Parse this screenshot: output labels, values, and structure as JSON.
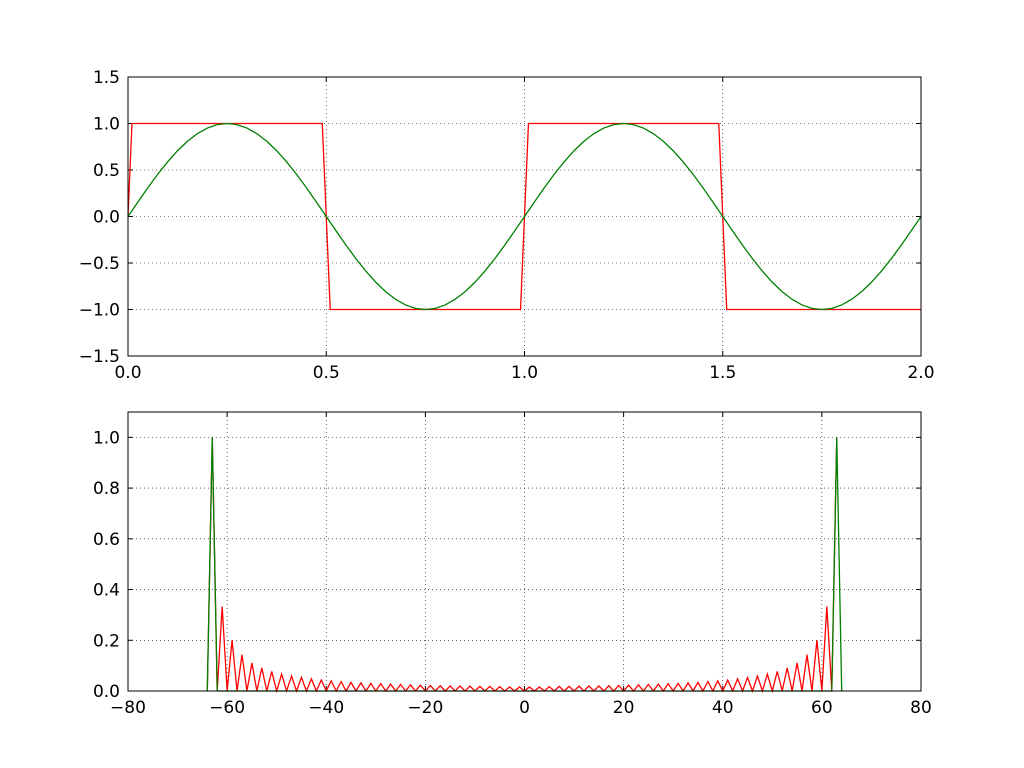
{
  "chart_data": [
    {
      "type": "line",
      "xlim": [
        0,
        2
      ],
      "ylim": [
        -1.5,
        1.5
      ],
      "xticks": [
        {
          "value": 0,
          "label": "0.0"
        },
        0.5,
        {
          "value": 1,
          "label": "1.0"
        },
        1.5,
        {
          "value": 2,
          "label": "2.0"
        }
      ],
      "yticks": [
        {
          "value": -1.5,
          "label": "−1.5"
        },
        {
          "value": -1,
          "label": "−1.0"
        },
        {
          "value": -0.5,
          "label": "−0.5"
        },
        {
          "value": 0,
          "label": "0.0"
        },
        0.5,
        {
          "value": 1,
          "label": "1.0"
        },
        1.5
      ],
      "grid": true,
      "series": [
        {
          "color": "#ff0000",
          "x": [
            0,
            0.01,
            0.49,
            0.5,
            0.51,
            0.99,
            1.0,
            1.01,
            1.49,
            1.5,
            1.51,
            2.0
          ],
          "values": [
            0,
            1,
            1,
            0,
            -1,
            -1,
            0,
            1,
            1,
            0,
            -1,
            -1
          ]
        },
        {
          "color": "#008000",
          "x": [
            0,
            0.025,
            0.05,
            0.075,
            0.1,
            0.125,
            0.15,
            0.175,
            0.2,
            0.225,
            0.25,
            0.275,
            0.3,
            0.325,
            0.35,
            0.375,
            0.4,
            0.425,
            0.45,
            0.475,
            0.5,
            0.525,
            0.55,
            0.575,
            0.6,
            0.625,
            0.65,
            0.675,
            0.7,
            0.725,
            0.75,
            0.775,
            0.8,
            0.825,
            0.85,
            0.875,
            0.9,
            0.925,
            0.95,
            0.975,
            1.0,
            1.025,
            1.05,
            1.075,
            1.1,
            1.125,
            1.15,
            1.175,
            1.2,
            1.225,
            1.25,
            1.275,
            1.3,
            1.325,
            1.35,
            1.375,
            1.4,
            1.425,
            1.45,
            1.475,
            1.5,
            1.525,
            1.55,
            1.575,
            1.6,
            1.625,
            1.65,
            1.675,
            1.7,
            1.725,
            1.75,
            1.775,
            1.8,
            1.825,
            1.85,
            1.875,
            1.9,
            1.925,
            1.95,
            1.975,
            2.0
          ],
          "values": [
            0,
            0.156,
            0.309,
            0.454,
            0.588,
            0.707,
            0.809,
            0.891,
            0.951,
            0.988,
            1,
            0.988,
            0.951,
            0.891,
            0.809,
            0.707,
            0.588,
            0.454,
            0.309,
            0.156,
            0,
            -0.156,
            -0.309,
            -0.454,
            -0.588,
            -0.707,
            -0.809,
            -0.891,
            -0.951,
            -0.988,
            -1,
            -0.988,
            -0.951,
            -0.891,
            -0.809,
            -0.707,
            -0.588,
            -0.454,
            -0.309,
            -0.156,
            0,
            0.156,
            0.309,
            0.454,
            0.588,
            0.707,
            0.809,
            0.891,
            0.951,
            0.988,
            1,
            0.988,
            0.951,
            0.891,
            0.809,
            0.707,
            0.588,
            0.454,
            0.309,
            0.156,
            0,
            -0.156,
            -0.309,
            -0.454,
            -0.588,
            -0.707,
            -0.809,
            -0.891,
            -0.951,
            -0.988,
            -1,
            -0.988,
            -0.951,
            -0.891,
            -0.809,
            -0.707,
            -0.588,
            -0.454,
            -0.309,
            -0.156,
            0
          ]
        }
      ]
    },
    {
      "type": "line",
      "xlim": [
        -80,
        80
      ],
      "ylim": [
        0,
        1.1
      ],
      "xticks": [
        {
          "value": -80,
          "label": "−80"
        },
        {
          "value": -60,
          "label": "−60"
        },
        {
          "value": -40,
          "label": "−40"
        },
        {
          "value": -20,
          "label": "−20"
        },
        0,
        20,
        40,
        60,
        80
      ],
      "yticks": [
        {
          "value": 0,
          "label": "0.0"
        },
        0.2,
        0.4,
        0.6,
        0.8,
        {
          "value": 1,
          "label": "1.0"
        }
      ],
      "grid": true,
      "series": [
        {
          "color": "#ff0000",
          "x": [
            -64,
            -63,
            -62,
            -61,
            -60,
            -59,
            -58,
            -57,
            -56,
            -55,
            -54,
            -53,
            -52,
            -51,
            -50,
            -49,
            -48,
            -47,
            -46,
            -45,
            -44,
            -43,
            -42,
            -41,
            -40,
            -39,
            -38,
            -37,
            -36,
            -35,
            -34,
            -33,
            -32,
            -31,
            -30,
            -29,
            -28,
            -27,
            -26,
            -25,
            -24,
            -23,
            -22,
            -21,
            -20,
            -19,
            -18,
            -17,
            -16,
            -15,
            -14,
            -13,
            -12,
            -11,
            -10,
            -9,
            -8,
            -7,
            -6,
            -5,
            -4,
            -3,
            -2,
            -1,
            0,
            1,
            2,
            3,
            4,
            5,
            6,
            7,
            8,
            9,
            10,
            11,
            12,
            13,
            14,
            15,
            16,
            17,
            18,
            19,
            20,
            21,
            22,
            23,
            24,
            25,
            26,
            27,
            28,
            29,
            30,
            31,
            32,
            33,
            34,
            35,
            36,
            37,
            38,
            39,
            40,
            41,
            42,
            43,
            44,
            45,
            46,
            47,
            48,
            49,
            50,
            51,
            52,
            53,
            54,
            55,
            56,
            57,
            58,
            59,
            60,
            61,
            62,
            63
          ],
          "values": [
            0,
            1,
            0,
            0.333,
            0,
            0.2,
            0,
            0.143,
            0,
            0.111,
            0,
            0.091,
            0,
            0.077,
            0,
            0.067,
            0,
            0.059,
            0,
            0.053,
            0,
            0.048,
            0,
            0.043,
            0,
            0.04,
            0,
            0.037,
            0,
            0.034,
            0,
            0.032,
            0,
            0.03,
            0,
            0.029,
            0,
            0.027,
            0,
            0.026,
            0,
            0.024,
            0,
            0.023,
            0,
            0.022,
            0,
            0.021,
            0,
            0.02,
            0,
            0.02,
            0,
            0.019,
            0,
            0.018,
            0,
            0.018,
            0,
            0.017,
            0,
            0.016,
            0,
            0.016,
            0,
            0.016,
            0,
            0.016,
            0,
            0.017,
            0,
            0.018,
            0,
            0.018,
            0,
            0.019,
            0,
            0.02,
            0,
            0.02,
            0,
            0.021,
            0,
            0.022,
            0,
            0.023,
            0,
            0.024,
            0,
            0.026,
            0,
            0.027,
            0,
            0.029,
            0,
            0.03,
            0,
            0.032,
            0,
            0.034,
            0,
            0.037,
            0,
            0.04,
            0,
            0.043,
            0,
            0.048,
            0,
            0.053,
            0,
            0.059,
            0,
            0.067,
            0,
            0.077,
            0,
            0.091,
            0,
            0.111,
            0,
            0.143,
            0,
            0.2,
            0,
            0.333,
            0,
            1
          ]
        },
        {
          "color": "#008000",
          "x": [
            -64,
            -63,
            -62,
            62,
            63,
            64
          ],
          "values": [
            0,
            1,
            0,
            0,
            1,
            0
          ]
        }
      ]
    }
  ]
}
